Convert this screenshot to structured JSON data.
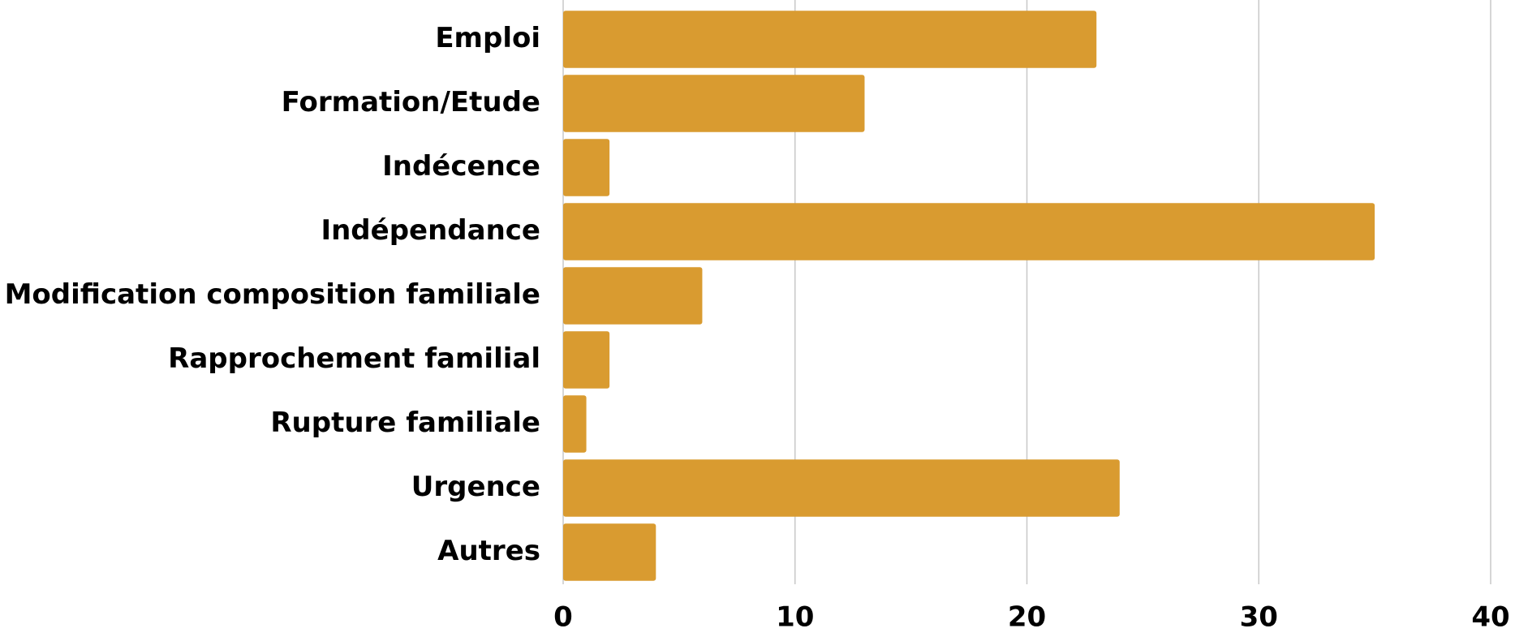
{
  "chart_data": {
    "type": "hbar",
    "categories": [
      "Emploi",
      "Formation/Etude",
      "Indécence",
      "Indépendance",
      "Modification composition familiale",
      "Rapprochement familial",
      "Rupture familiale",
      "Urgence",
      "Autres"
    ],
    "values": [
      23,
      13,
      2,
      35,
      6,
      2,
      1,
      24,
      4
    ],
    "color": "#d99b30",
    "xlim": [
      0,
      40
    ],
    "xticks": [
      0,
      10,
      20,
      30,
      40
    ],
    "grid": true
  }
}
